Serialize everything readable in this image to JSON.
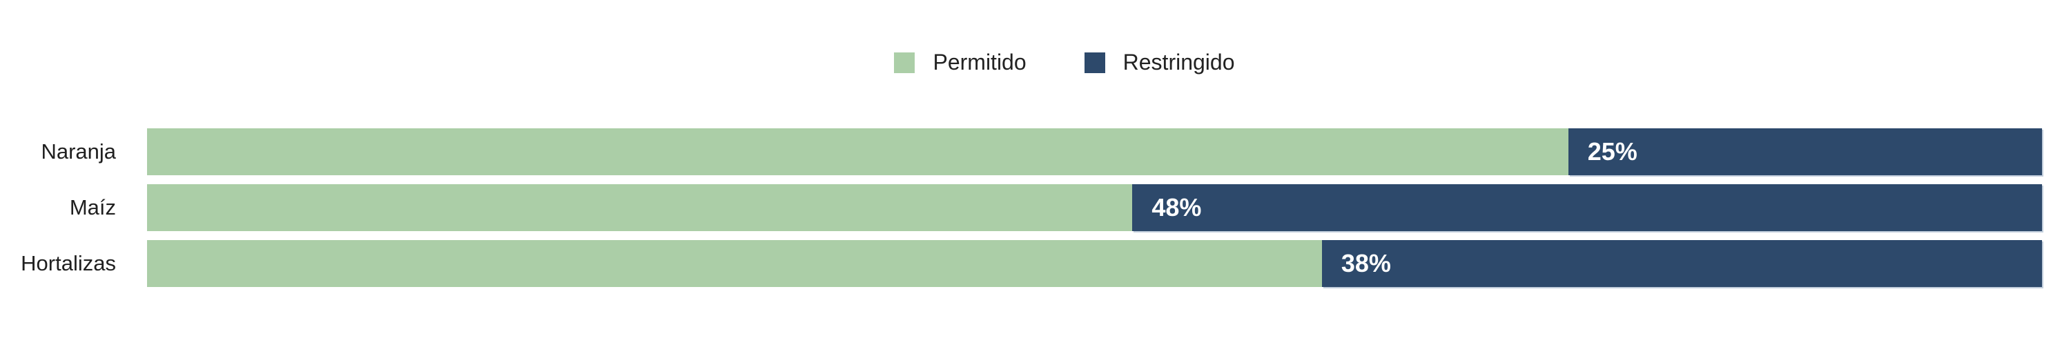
{
  "chart_data": {
    "type": "bar",
    "orientation": "horizontal",
    "stacked": true,
    "unit": "%",
    "categories": [
      "Naranja",
      "Maíz",
      "Hortalizas"
    ],
    "series": [
      {
        "name": "Permitido",
        "color": "#abcea7",
        "values": [
          75,
          52,
          62
        ]
      },
      {
        "name": "Restringido",
        "color": "#2d496b",
        "values": [
          25,
          48,
          38
        ]
      }
    ],
    "segment_labels": {
      "series": "Restringido",
      "labels": [
        "25%",
        "48%",
        "38%"
      ]
    },
    "xlim": [
      0,
      100
    ],
    "grid": false,
    "legend_position": "top-center",
    "title": ""
  },
  "colors": {
    "background": "#ffffff",
    "category_text": "#1f1f1f",
    "value_text": "#ffffff",
    "legend_text": "#222222"
  }
}
